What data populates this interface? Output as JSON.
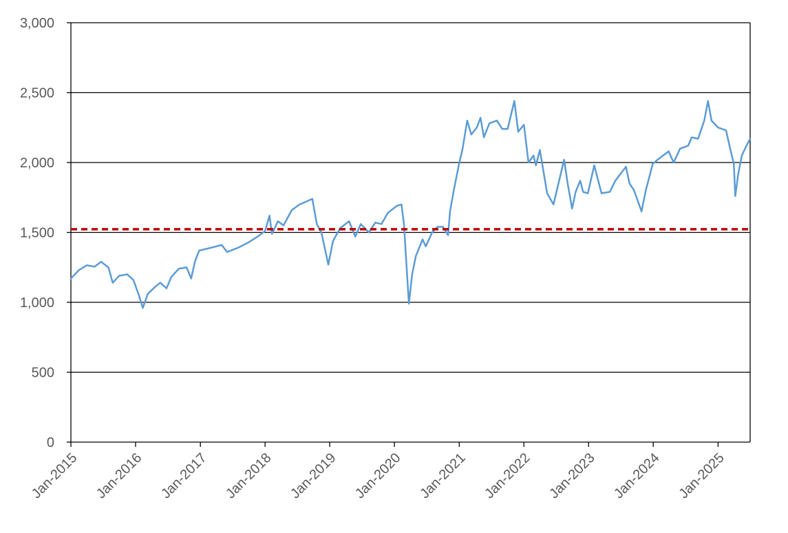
{
  "chart_data": {
    "type": "line",
    "title": "",
    "xlabel": "",
    "ylabel": "",
    "ylim": [
      0,
      3000
    ],
    "xlim": [
      "2015-01-01",
      "2025-07-01"
    ],
    "grid": "horizontal",
    "legend": "none",
    "y_ticks": [
      "0",
      "500",
      "1,000",
      "1,500",
      "2,000",
      "2,500",
      "3,000"
    ],
    "x_ticks": [
      "Jan-2015",
      "Jan-2016",
      "Jan-2017",
      "Jan-2018",
      "Jan-2019",
      "Jan-2020",
      "Jan-2021",
      "Jan-2022",
      "Jan-2023",
      "Jan-2024",
      "Jan-2025"
    ],
    "colors": {
      "series": "#5b9bd5",
      "reference": "#c00000",
      "grid": "#000000",
      "tick_text": "#595959"
    },
    "series": [
      {
        "values": [
          [
            "2015-01-01",
            1170
          ],
          [
            "2015-02-15",
            1230
          ],
          [
            "2015-04-01",
            1265
          ],
          [
            "2015-05-15",
            1255
          ],
          [
            "2015-06-20",
            1290
          ],
          [
            "2015-08-01",
            1250
          ],
          [
            "2015-08-25",
            1140
          ],
          [
            "2015-10-01",
            1190
          ],
          [
            "2015-11-15",
            1200
          ],
          [
            "2015-12-20",
            1160
          ],
          [
            "2016-01-20",
            1050
          ],
          [
            "2016-02-11",
            960
          ],
          [
            "2016-03-10",
            1060
          ],
          [
            "2016-04-20",
            1110
          ],
          [
            "2016-05-20",
            1140
          ],
          [
            "2016-06-24",
            1100
          ],
          [
            "2016-07-20",
            1180
          ],
          [
            "2016-09-01",
            1240
          ],
          [
            "2016-10-15",
            1250
          ],
          [
            "2016-11-10",
            1170
          ],
          [
            "2016-12-01",
            1290
          ],
          [
            "2016-12-25",
            1370
          ],
          [
            "2017-03-01",
            1390
          ],
          [
            "2017-05-01",
            1410
          ],
          [
            "2017-06-01",
            1360
          ],
          [
            "2017-08-01",
            1390
          ],
          [
            "2017-10-01",
            1430
          ],
          [
            "2017-11-20",
            1470
          ],
          [
            "2018-01-01",
            1510
          ],
          [
            "2018-01-26",
            1620
          ],
          [
            "2018-02-09",
            1490
          ],
          [
            "2018-03-15",
            1580
          ],
          [
            "2018-04-15",
            1550
          ],
          [
            "2018-06-01",
            1660
          ],
          [
            "2018-07-15",
            1700
          ],
          [
            "2018-08-20",
            1720
          ],
          [
            "2018-09-25",
            1740
          ],
          [
            "2018-10-20",
            1560
          ],
          [
            "2018-11-15",
            1500
          ],
          [
            "2018-12-24",
            1270
          ],
          [
            "2019-01-20",
            1440
          ],
          [
            "2019-03-01",
            1530
          ],
          [
            "2019-04-20",
            1580
          ],
          [
            "2019-05-25",
            1470
          ],
          [
            "2019-06-25",
            1560
          ],
          [
            "2019-08-10",
            1500
          ],
          [
            "2019-09-15",
            1570
          ],
          [
            "2019-10-20",
            1560
          ],
          [
            "2019-11-25",
            1640
          ],
          [
            "2020-01-15",
            1690
          ],
          [
            "2020-02-10",
            1700
          ],
          [
            "2020-02-24",
            1560
          ],
          [
            "2020-03-10",
            1250
          ],
          [
            "2020-03-23",
            990
          ],
          [
            "2020-04-10",
            1200
          ],
          [
            "2020-05-01",
            1330
          ],
          [
            "2020-06-08",
            1450
          ],
          [
            "2020-06-26",
            1400
          ],
          [
            "2020-08-01",
            1500
          ],
          [
            "2020-09-01",
            1540
          ],
          [
            "2020-10-01",
            1540
          ],
          [
            "2020-10-30",
            1480
          ],
          [
            "2020-11-10",
            1650
          ],
          [
            "2020-12-01",
            1800
          ],
          [
            "2020-12-31",
            1990
          ],
          [
            "2021-01-20",
            2100
          ],
          [
            "2021-02-15",
            2300
          ],
          [
            "2021-03-10",
            2200
          ],
          [
            "2021-04-10",
            2250
          ],
          [
            "2021-05-01",
            2320
          ],
          [
            "2021-05-20",
            2180
          ],
          [
            "2021-06-20",
            2280
          ],
          [
            "2021-08-01",
            2300
          ],
          [
            "2021-09-01",
            2240
          ],
          [
            "2021-10-01",
            2240
          ],
          [
            "2021-11-08",
            2440
          ],
          [
            "2021-11-30",
            2220
          ],
          [
            "2022-01-01",
            2270
          ],
          [
            "2022-01-27",
            2000
          ],
          [
            "2022-02-24",
            2050
          ],
          [
            "2022-03-10",
            1980
          ],
          [
            "2022-04-01",
            2090
          ],
          [
            "2022-05-12",
            1780
          ],
          [
            "2022-06-17",
            1700
          ],
          [
            "2022-07-15",
            1850
          ],
          [
            "2022-08-16",
            2020
          ],
          [
            "2022-09-05",
            1850
          ],
          [
            "2022-09-30",
            1670
          ],
          [
            "2022-10-20",
            1790
          ],
          [
            "2022-11-15",
            1870
          ],
          [
            "2022-12-01",
            1790
          ],
          [
            "2022-12-28",
            1780
          ],
          [
            "2023-02-02",
            1980
          ],
          [
            "2023-03-15",
            1780
          ],
          [
            "2023-05-01",
            1790
          ],
          [
            "2023-06-01",
            1870
          ],
          [
            "2023-07-31",
            1970
          ],
          [
            "2023-08-20",
            1850
          ],
          [
            "2023-09-15",
            1800
          ],
          [
            "2023-10-27",
            1650
          ],
          [
            "2023-11-20",
            1800
          ],
          [
            "2023-12-29",
            1990
          ],
          [
            "2024-01-25",
            2020
          ],
          [
            "2024-03-28",
            2080
          ],
          [
            "2024-04-25",
            2000
          ],
          [
            "2024-06-01",
            2100
          ],
          [
            "2024-07-16",
            2120
          ],
          [
            "2024-08-05",
            2180
          ],
          [
            "2024-09-10",
            2170
          ],
          [
            "2024-10-15",
            2300
          ],
          [
            "2024-11-05",
            2440
          ],
          [
            "2024-11-25",
            2300
          ],
          [
            "2025-01-01",
            2250
          ],
          [
            "2025-02-15",
            2230
          ],
          [
            "2025-03-10",
            2100
          ],
          [
            "2025-03-31",
            1990
          ],
          [
            "2025-04-08",
            1760
          ],
          [
            "2025-04-25",
            1920
          ],
          [
            "2025-05-15",
            2050
          ],
          [
            "2025-06-10",
            2120
          ],
          [
            "2025-07-01",
            2170
          ]
        ]
      },
      {
        "style": "dashed",
        "values": [
          [
            "2015-01-01",
            1523
          ],
          [
            "2025-07-01",
            1523
          ]
        ]
      }
    ]
  }
}
